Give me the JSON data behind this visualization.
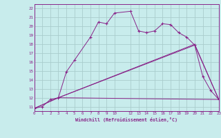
{
  "background_color": "#c8ecec",
  "line_color": "#882288",
  "grid_color": "#aacccc",
  "xlabel": "Windchill (Refroidissement éolien,°C)",
  "ylabel_values": [
    11,
    12,
    13,
    14,
    15,
    16,
    17,
    18,
    19,
    20,
    21,
    22
  ],
  "xlabel_values": [
    0,
    1,
    2,
    3,
    4,
    5,
    6,
    7,
    8,
    9,
    10,
    12,
    13,
    14,
    15,
    16,
    17,
    18,
    19,
    20,
    21,
    22,
    23
  ],
  "series1_x": [
    0,
    1,
    2,
    3,
    4,
    5,
    7,
    8,
    9,
    10,
    12,
    13,
    14,
    15,
    16,
    17,
    18,
    19,
    20,
    21,
    22,
    23
  ],
  "series1_y": [
    10.8,
    11.0,
    11.8,
    12.0,
    14.9,
    16.2,
    18.8,
    20.5,
    20.3,
    21.5,
    21.7,
    19.5,
    19.3,
    19.5,
    20.3,
    20.2,
    19.3,
    18.8,
    17.9,
    14.4,
    12.8,
    11.8
  ],
  "series2_x": [
    0,
    3,
    20,
    23
  ],
  "series2_y": [
    10.8,
    12.0,
    17.9,
    11.8
  ],
  "series3_x": [
    0,
    3,
    23
  ],
  "series3_y": [
    10.8,
    12.0,
    11.8
  ],
  "series4_x": [
    3,
    20,
    23
  ],
  "series4_y": [
    12.0,
    18.0,
    11.8
  ],
  "xlim": [
    0,
    23
  ],
  "ylim": [
    10.5,
    22.5
  ]
}
